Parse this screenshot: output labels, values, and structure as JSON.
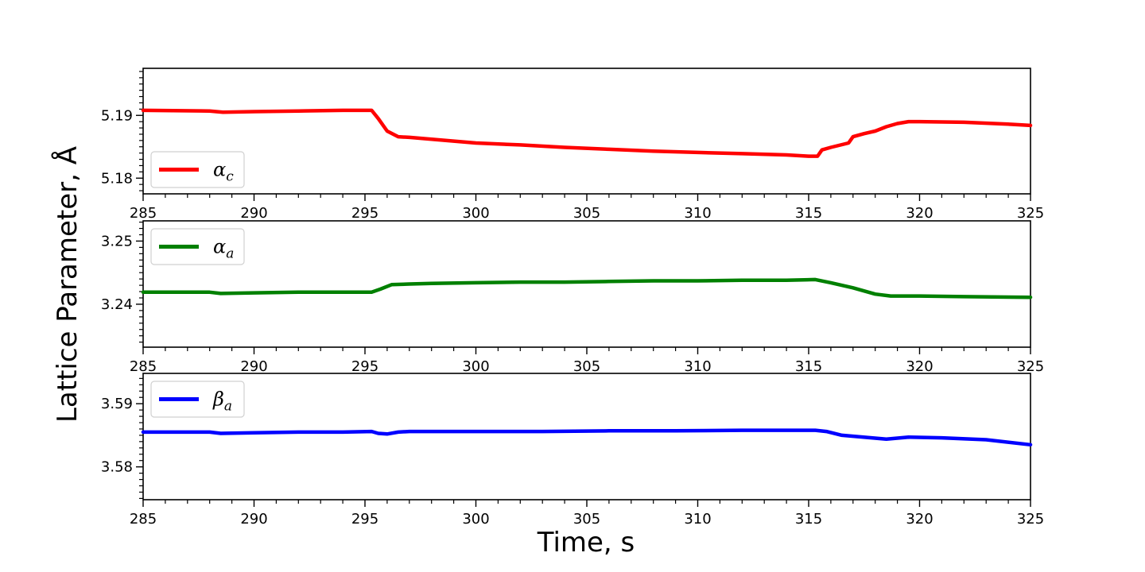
{
  "chart_data": {
    "type": "line",
    "xlabel": "Time, s",
    "ylabel": "Lattice Parameter, Å",
    "xlim": [
      285,
      325
    ],
    "xticks": [
      285,
      290,
      295,
      300,
      305,
      310,
      315,
      320,
      325
    ],
    "panels": [
      {
        "legend_location": "lower-left",
        "ylim": [
          5.1775,
          5.1975
        ],
        "yticks": [
          5.18,
          5.19
        ],
        "ytick_labels": [
          "5.18",
          "5.19"
        ],
        "series": [
          {
            "name": "α_c",
            "label_main": "α",
            "label_sub": "c",
            "color": "#ff0000",
            "x": [
              285,
              288,
              288.6,
              290,
              292,
              294,
              295.3,
              295.6,
              296,
              296.5,
              297,
              298,
              300,
              302,
              304,
              306,
              308,
              310,
              312,
              314,
              315,
              315.4,
              315.6,
              316,
              316.8,
              317,
              317.5,
              318,
              318.5,
              319,
              319.5,
              320,
              322,
              324,
              325
            ],
            "y": [
              5.1908,
              5.1907,
              5.1905,
              5.1906,
              5.1907,
              5.1908,
              5.1908,
              5.1895,
              5.1875,
              5.1866,
              5.1865,
              5.1862,
              5.1856,
              5.1853,
              5.1849,
              5.1846,
              5.1843,
              5.1841,
              5.1839,
              5.1837,
              5.1835,
              5.1835,
              5.1845,
              5.1849,
              5.1856,
              5.1866,
              5.1871,
              5.1875,
              5.1882,
              5.1887,
              5.189,
              5.189,
              5.1889,
              5.1886,
              5.1884
            ]
          }
        ]
      },
      {
        "legend_location": "upper-left",
        "ylim": [
          3.2332,
          3.2532
        ],
        "yticks": [
          3.24,
          3.25
        ],
        "ytick_labels": [
          "3.24",
          "3.25"
        ],
        "series": [
          {
            "name": "α_a",
            "label_main": "α",
            "label_sub": "a",
            "color": "#008000",
            "x": [
              285,
              288,
              288.5,
              290,
              292,
              294,
              295.3,
              295.7,
              296.2,
              297,
              298,
              300,
              302,
              304,
              306,
              308,
              310,
              312,
              314,
              315.3,
              316,
              317,
              318,
              318.7,
              320,
              322,
              325
            ],
            "y": [
              3.2419,
              3.2419,
              3.2417,
              3.2418,
              3.2419,
              3.2419,
              3.2419,
              3.2424,
              3.2431,
              3.2432,
              3.2433,
              3.2434,
              3.2435,
              3.2435,
              3.2436,
              3.2437,
              3.2437,
              3.2438,
              3.2438,
              3.2439,
              3.2434,
              3.2426,
              3.2416,
              3.2413,
              3.2413,
              3.2412,
              3.2411
            ]
          }
        ]
      },
      {
        "legend_location": "upper-left",
        "ylim": [
          3.5748,
          3.5948
        ],
        "yticks": [
          3.58,
          3.59
        ],
        "ytick_labels": [
          "3.58",
          "3.59"
        ],
        "series": [
          {
            "name": "β_a",
            "label_main": "β",
            "label_sub": "a",
            "color": "#0000ff",
            "x": [
              285,
              288,
              288.5,
              290,
              292,
              294,
              295.3,
              295.6,
              296,
              296.5,
              297,
              300,
              303,
              306,
              309,
              312,
              315.3,
              315.8,
              316.5,
              318.5,
              319.5,
              321,
              323,
              325
            ],
            "y": [
              3.5855,
              3.5855,
              3.5853,
              3.5854,
              3.5855,
              3.5855,
              3.5856,
              3.5853,
              3.5852,
              3.5855,
              3.5856,
              3.5856,
              3.5856,
              3.5857,
              3.5857,
              3.5858,
              3.5858,
              3.5856,
              3.585,
              3.5844,
              3.5847,
              3.5846,
              3.5843,
              3.5835
            ]
          }
        ]
      }
    ]
  }
}
